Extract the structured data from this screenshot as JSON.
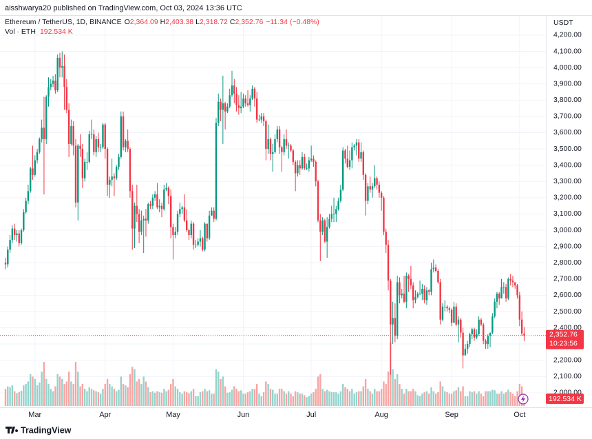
{
  "chart_data": {
    "type": "candlestick",
    "byline": "aisshwarya20 published on TradingView.com, Oct 03, 2024 13:36 UTC",
    "title": "Ethereum / TetherUS, 1D, BINANCE",
    "ohlc_legend": [
      {
        "key": "O",
        "value": 2364.09,
        "label": "2,364.09"
      },
      {
        "key": "H",
        "value": 2403.38,
        "label": "2,403.38"
      },
      {
        "key": "L",
        "value": 2318.72,
        "label": "2,318.72"
      },
      {
        "key": "C",
        "value": 2352.76,
        "label": "2,352.76"
      }
    ],
    "change": {
      "value": -11.34,
      "label": "−11.34"
    },
    "change_pct": {
      "value": -0.48,
      "label": "(−0.48%)"
    },
    "currency": "USDT",
    "categories": [
      null,
      null,
      null,
      null,
      null,
      null,
      null,
      null,
      null,
      null,
      null,
      null,
      null,
      "Mar",
      null,
      null,
      null,
      null,
      null,
      null,
      null,
      null,
      null,
      null,
      null,
      null,
      null,
      null,
      null,
      null,
      null,
      null,
      null,
      null,
      null,
      null,
      null,
      null,
      null,
      null,
      null,
      null,
      null,
      null,
      "Apr",
      null,
      null,
      null,
      null,
      null,
      null,
      null,
      null,
      null,
      null,
      null,
      null,
      null,
      null,
      null,
      null,
      null,
      null,
      null,
      null,
      null,
      null,
      null,
      null,
      null,
      null,
      null,
      null,
      null,
      "May",
      null,
      null,
      null,
      null,
      null,
      null,
      null,
      null,
      null,
      null,
      null,
      null,
      null,
      null,
      null,
      null,
      null,
      null,
      null,
      null,
      null,
      null,
      null,
      null,
      null,
      null,
      null,
      null,
      null,
      null,
      "Jun",
      null,
      null,
      null,
      null,
      null,
      null,
      null,
      null,
      null,
      null,
      null,
      null,
      null,
      null,
      null,
      null,
      null,
      null,
      null,
      null,
      null,
      null,
      null,
      null,
      null,
      null,
      null,
      null,
      null,
      "Jul",
      null,
      null,
      null,
      null,
      null,
      null,
      null,
      null,
      null,
      null,
      null,
      null,
      null,
      null,
      null,
      null,
      null,
      null,
      null,
      null,
      null,
      null,
      null,
      null,
      null,
      null,
      null,
      null,
      null,
      null,
      "Aug",
      null,
      null,
      null,
      null,
      null,
      null,
      null,
      null,
      null,
      null,
      null,
      null,
      null,
      null,
      null,
      null,
      null,
      null,
      null,
      null,
      null,
      null,
      null,
      null,
      null,
      null,
      null,
      null,
      null,
      null,
      "Sep",
      null,
      null,
      null,
      null,
      null,
      null,
      null,
      null,
      null,
      null,
      null,
      null,
      null,
      null,
      null,
      null,
      null,
      null,
      null,
      null,
      null,
      null,
      null,
      null,
      null,
      null,
      null,
      null,
      null,
      "Oct",
      null,
      null
    ],
    "open": [
      2800,
      2790,
      2880,
      2940,
      3010,
      2970,
      2980,
      2920,
      3000,
      3110,
      3180,
      3240,
      3380,
      3340,
      3430,
      3480,
      3560,
      3630,
      3560,
      3820,
      3880,
      3900,
      3920,
      3860,
      4060,
      4000,
      4010,
      3880,
      3740,
      3530,
      3640,
      3520,
      3170,
      3520,
      3500,
      3320,
      3420,
      3420,
      3590,
      3590,
      3480,
      3560,
      3510,
      3510,
      3650,
      3500,
      3280,
      3310,
      3330,
      3320,
      3390,
      3450,
      3700,
      3510,
      3550,
      3500,
      3240,
      3010,
      3150,
      3100,
      2990,
      3060,
      3070,
      3060,
      3160,
      3150,
      3200,
      3220,
      3140,
      3150,
      3130,
      3250,
      3260,
      3210,
      3020,
      2970,
      2990,
      3100,
      3130,
      3140,
      3060,
      3000,
      2970,
      3040,
      2910,
      2910,
      2930,
      2950,
      2880,
      3040,
      2950,
      3090,
      3120,
      3070,
      3660,
      3790,
      3740,
      3780,
      3730,
      3760,
      3830,
      3890,
      3840,
      3770,
      3750,
      3760,
      3810,
      3780,
      3770,
      3810,
      3870,
      3810,
      3680,
      3680,
      3700,
      3670,
      3500,
      3560,
      3470,
      3480,
      3560,
      3620,
      3510,
      3480,
      3560,
      3520,
      3520,
      3490,
      3420,
      3350,
      3400,
      3380,
      3450,
      3380,
      3380,
      3430,
      3440,
      3420,
      3300,
      3060,
      2990,
      3060,
      2930,
      3020,
      3070,
      3100,
      3100,
      3130,
      3180,
      3250,
      3490,
      3440,
      3390,
      3430,
      3510,
      3520,
      3540,
      3440,
      3480,
      3340,
      3180,
      3270,
      3250,
      3270,
      3320,
      3280,
      3230,
      3200,
      2990,
      2910,
      2690,
      2420,
      2460,
      2350,
      2680,
      2600,
      2610,
      2560,
      2720,
      2700,
      2660,
      2570,
      2590,
      2610,
      2610,
      2640,
      2570,
      2630,
      2620,
      2760,
      2770,
      2750,
      2680,
      2450,
      2530,
      2530,
      2520,
      2510,
      2430,
      2530,
      2420,
      2450,
      2370,
      2230,
      2270,
      2300,
      2360,
      2390,
      2340,
      2360,
      2450,
      2420,
      2320,
      2300,
      2350,
      2370,
      2470,
      2560,
      2610,
      2580,
      2650,
      2650,
      2580,
      2700,
      2690,
      2680,
      2660,
      2600,
      2450,
      2364.09
    ],
    "high": [
      2830,
      2900,
      2970,
      3030,
      3040,
      3000,
      3000,
      3010,
      3130,
      3200,
      3280,
      3390,
      3520,
      3460,
      3500,
      3570,
      3680,
      3820,
      3830,
      3940,
      3930,
      3950,
      3960,
      4080,
      4090,
      4100,
      4080,
      3930,
      3780,
      3680,
      3670,
      3560,
      3530,
      3590,
      3530,
      3440,
      3480,
      3610,
      3680,
      3620,
      3580,
      3600,
      3530,
      3660,
      3660,
      3510,
      3330,
      3440,
      3350,
      3400,
      3470,
      3730,
      3730,
      3560,
      3620,
      3510,
      3280,
      3170,
      3280,
      3130,
      3120,
      3090,
      3130,
      3170,
      3180,
      3220,
      3240,
      3290,
      3190,
      3170,
      3280,
      3290,
      3270,
      3250,
      3040,
      3020,
      3120,
      3170,
      3150,
      3220,
      3130,
      3010,
      3060,
      3050,
      2940,
      2950,
      3000,
      2960,
      3050,
      3040,
      3120,
      3140,
      3140,
      3690,
      3840,
      3810,
      3950,
      3790,
      3780,
      3870,
      3980,
      3930,
      3880,
      3830,
      3850,
      3840,
      3830,
      3860,
      3830,
      3890,
      3880,
      3850,
      3710,
      3720,
      3720,
      3680,
      3650,
      3570,
      3530,
      3590,
      3640,
      3640,
      3520,
      3590,
      3620,
      3540,
      3530,
      3500,
      3430,
      3430,
      3430,
      3480,
      3470,
      3410,
      3450,
      3520,
      3460,
      3430,
      3310,
      3100,
      3080,
      3070,
      3080,
      3100,
      3150,
      3200,
      3150,
      3200,
      3280,
      3510,
      3500,
      3520,
      3490,
      3540,
      3530,
      3560,
      3560,
      3540,
      3490,
      3350,
      3290,
      3330,
      3290,
      3400,
      3330,
      3300,
      3240,
      3210,
      3010,
      2940,
      2700,
      2560,
      2550,
      2720,
      2710,
      2640,
      2720,
      2740,
      2730,
      2780,
      2680,
      2630,
      2620,
      2690,
      2670,
      2660,
      2650,
      2640,
      2800,
      2820,
      2790,
      2760,
      2700,
      2550,
      2570,
      2540,
      2530,
      2520,
      2560,
      2550,
      2470,
      2460,
      2400,
      2300,
      2320,
      2370,
      2400,
      2400,
      2390,
      2470,
      2460,
      2430,
      2330,
      2360,
      2370,
      2490,
      2580,
      2620,
      2620,
      2700,
      2680,
      2670,
      2710,
      2730,
      2720,
      2680,
      2670,
      2620,
      2500,
      2403.38
    ],
    "low": [
      2760,
      2770,
      2860,
      2920,
      2940,
      2930,
      2900,
      2910,
      2990,
      3100,
      3160,
      3230,
      3310,
      3330,
      3410,
      3470,
      3540,
      3220,
      3530,
      3760,
      3860,
      3880,
      3840,
      3850,
      3940,
      3940,
      3740,
      3720,
      3450,
      3520,
      3460,
      3140,
      3060,
      3450,
      3260,
      3300,
      3370,
      3410,
      3560,
      3460,
      3450,
      3480,
      3480,
      3500,
      3440,
      3210,
      3200,
      3270,
      3210,
      3310,
      3370,
      3440,
      3490,
      3480,
      3480,
      3200,
      2880,
      2890,
      3050,
      2920,
      2970,
      2860,
      2960,
      3040,
      3130,
      3130,
      3180,
      3130,
      3110,
      3080,
      3120,
      3240,
      3160,
      2950,
      2820,
      2950,
      2970,
      3080,
      3100,
      3050,
      2990,
      2940,
      2950,
      2880,
      2890,
      2900,
      2900,
      2870,
      2870,
      2930,
      2940,
      3090,
      3050,
      3060,
      3640,
      3670,
      3530,
      3620,
      3720,
      3750,
      3820,
      3780,
      3730,
      3710,
      3720,
      3750,
      3760,
      3760,
      3730,
      3800,
      3760,
      3660,
      3670,
      3660,
      3640,
      3430,
      3470,
      3430,
      3360,
      3470,
      3540,
      3470,
      3360,
      3460,
      3500,
      3440,
      3480,
      3400,
      3240,
      3330,
      3340,
      3370,
      3370,
      3370,
      3360,
      3420,
      3390,
      3270,
      3050,
      2810,
      2970,
      2920,
      2830,
      3010,
      3050,
      3050,
      3050,
      3120,
      3170,
      3240,
      3410,
      3380,
      3370,
      3380,
      3490,
      3460,
      3420,
      3420,
      3310,
      3090,
      3160,
      3230,
      3200,
      3260,
      3250,
      3200,
      3120,
      2970,
      2860,
      2630,
      2110,
      2300,
      2310,
      2330,
      2550,
      2580,
      2550,
      2520,
      2620,
      2640,
      2520,
      2550,
      2580,
      2600,
      2570,
      2550,
      2540,
      2600,
      2600,
      2740,
      2740,
      2670,
      2420,
      2440,
      2500,
      2500,
      2490,
      2410,
      2430,
      2410,
      2310,
      2340,
      2150,
      2230,
      2240,
      2280,
      2330,
      2320,
      2330,
      2350,
      2410,
      2300,
      2270,
      2270,
      2280,
      2360,
      2460,
      2520,
      2540,
      2580,
      2610,
      2560,
      2570,
      2660,
      2650,
      2640,
      2580,
      2410,
      2350,
      2318.72
    ],
    "close": [
      2790,
      2880,
      2940,
      3010,
      2970,
      2980,
      2920,
      3000,
      3110,
      3180,
      3240,
      3380,
      3340,
      3430,
      3480,
      3560,
      3630,
      3560,
      3820,
      3880,
      3900,
      3920,
      3860,
      4060,
      4000,
      4010,
      3880,
      3740,
      3530,
      3640,
      3520,
      3170,
      3520,
      3500,
      3320,
      3420,
      3420,
      3590,
      3590,
      3480,
      3560,
      3510,
      3510,
      3650,
      3500,
      3280,
      3310,
      3330,
      3320,
      3390,
      3450,
      3700,
      3510,
      3550,
      3500,
      3240,
      3010,
      3150,
      3100,
      2990,
      3060,
      3070,
      3060,
      3160,
      3150,
      3200,
      3220,
      3140,
      3150,
      3130,
      3250,
      3260,
      3210,
      3020,
      2970,
      2990,
      3100,
      3130,
      3140,
      3060,
      3000,
      2970,
      3040,
      2910,
      2910,
      2930,
      2950,
      2880,
      3040,
      2950,
      3090,
      3120,
      3070,
      3660,
      3790,
      3740,
      3780,
      3730,
      3760,
      3830,
      3890,
      3840,
      3770,
      3750,
      3760,
      3810,
      3780,
      3770,
      3810,
      3870,
      3810,
      3680,
      3680,
      3700,
      3670,
      3500,
      3560,
      3470,
      3480,
      3560,
      3620,
      3510,
      3480,
      3560,
      3520,
      3520,
      3490,
      3420,
      3350,
      3400,
      3380,
      3450,
      3380,
      3380,
      3430,
      3440,
      3420,
      3300,
      3060,
      2990,
      3060,
      2930,
      3020,
      3070,
      3100,
      3100,
      3130,
      3180,
      3250,
      3490,
      3440,
      3390,
      3430,
      3510,
      3520,
      3540,
      3440,
      3480,
      3340,
      3180,
      3270,
      3250,
      3270,
      3320,
      3280,
      3230,
      3200,
      2990,
      2910,
      2690,
      2420,
      2460,
      2350,
      2680,
      2600,
      2610,
      2560,
      2720,
      2700,
      2660,
      2570,
      2590,
      2610,
      2610,
      2640,
      2570,
      2630,
      2620,
      2760,
      2770,
      2750,
      2680,
      2450,
      2530,
      2530,
      2520,
      2510,
      2430,
      2530,
      2420,
      2450,
      2370,
      2230,
      2270,
      2300,
      2360,
      2390,
      2340,
      2360,
      2450,
      2420,
      2320,
      2300,
      2350,
      2370,
      2470,
      2560,
      2610,
      2580,
      2650,
      2650,
      2580,
      2700,
      2690,
      2680,
      2660,
      2600,
      2450,
      2364.09,
      2352.76
    ],
    "up_color": "#089981",
    "down_color": "#f23645",
    "volume": {
      "name": "Vol · ETH",
      "value_label": "192.534 K",
      "up_color": "#95d3cc",
      "down_color": "#f7a5a3",
      "values": [
        350,
        400,
        380,
        420,
        300,
        260,
        280,
        310,
        420,
        450,
        500,
        650,
        600,
        550,
        420,
        480,
        700,
        900,
        550,
        450,
        350,
        300,
        400,
        650,
        600,
        550,
        450,
        500,
        700,
        500,
        450,
        900,
        700,
        400,
        450,
        350,
        300,
        380,
        350,
        320,
        300,
        280,
        250,
        350,
        450,
        550,
        450,
        400,
        350,
        300,
        330,
        600,
        450,
        420,
        380,
        650,
        800,
        750,
        500,
        550,
        450,
        600,
        500,
        380,
        280,
        300,
        270,
        300,
        280,
        270,
        350,
        300,
        330,
        450,
        550,
        400,
        350,
        280,
        250,
        300,
        280,
        260,
        300,
        350,
        200,
        200,
        280,
        300,
        350,
        300,
        320,
        250,
        250,
        750,
        700,
        550,
        600,
        400,
        270,
        280,
        330,
        400,
        350,
        300,
        320,
        250,
        250,
        280,
        300,
        350,
        350,
        450,
        250,
        200,
        280,
        500,
        450,
        350,
        330,
        250,
        250,
        350,
        350,
        300,
        250,
        300,
        250,
        200,
        300,
        280,
        250,
        250,
        220,
        180,
        200,
        250,
        280,
        350,
        600,
        650,
        350,
        300,
        330,
        300,
        280,
        280,
        280,
        250,
        300,
        450,
        380,
        350,
        300,
        350,
        250,
        280,
        300,
        300,
        400,
        550,
        350,
        300,
        250,
        350,
        300,
        300,
        350,
        500,
        450,
        700,
        1300,
        750,
        550,
        650,
        450,
        350,
        250,
        350,
        300,
        300,
        350,
        300,
        220,
        200,
        250,
        280,
        300,
        250,
        380,
        300,
        250,
        280,
        500,
        400,
        300,
        280,
        250,
        250,
        300,
        320,
        380,
        300,
        400,
        200,
        200,
        300,
        280,
        300,
        250,
        300,
        250,
        200,
        300,
        300,
        300,
        330,
        320,
        250,
        250,
        300,
        250,
        280,
        330,
        280,
        250,
        200,
        300,
        450,
        400,
        192.534
      ]
    },
    "vlim": [
      0,
      1550
    ],
    "ylim": [
      1915,
      4297
    ],
    "yticks": [
      {
        "value": 2000,
        "label": "2,000.00"
      },
      {
        "value": 2100,
        "label": "2,100.00"
      },
      {
        "value": 2200,
        "label": "2,200.00"
      },
      {
        "value": 2300,
        "label": "2,300.00"
      },
      {
        "value": 2400,
        "label": "2,400.00"
      },
      {
        "value": 2500,
        "label": "2,500.00"
      },
      {
        "value": 2600,
        "label": "2,600.00"
      },
      {
        "value": 2700,
        "label": "2,700.00"
      },
      {
        "value": 2800,
        "label": "2,800.00"
      },
      {
        "value": 2900,
        "label": "2,900.00"
      },
      {
        "value": 3000,
        "label": "3,000.00"
      },
      {
        "value": 3100,
        "label": "3,100.00"
      },
      {
        "value": 3200,
        "label": "3,200.00"
      },
      {
        "value": 3300,
        "label": "3,300.00"
      },
      {
        "value": 3400,
        "label": "3,400.00"
      },
      {
        "value": 3500,
        "label": "3,500.00"
      },
      {
        "value": 3600,
        "label": "3,600.00"
      },
      {
        "value": 3700,
        "label": "3,700.00"
      },
      {
        "value": 3800,
        "label": "3,800.00"
      },
      {
        "value": 3900,
        "label": "3,900.00"
      },
      {
        "value": 4000,
        "label": "4,000.00"
      },
      {
        "value": 4100,
        "label": "4,100.00"
      },
      {
        "value": 4200,
        "label": "4,200.00"
      }
    ],
    "grid": true,
    "last_price": {
      "value": 2352.76,
      "label": "2,352.76"
    },
    "countdown": "10:23:56",
    "brand": "TradingView"
  }
}
